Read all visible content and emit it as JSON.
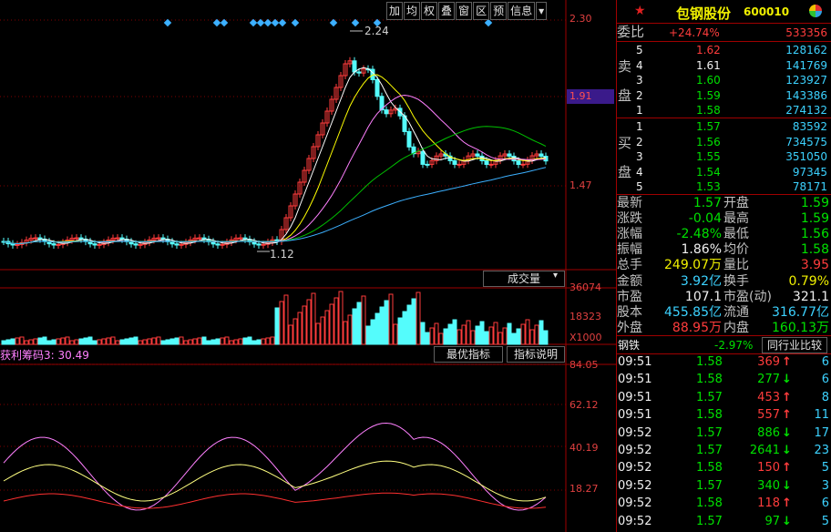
{
  "toolbar": [
    "加",
    "均",
    "权",
    "叠",
    "窗",
    "区",
    "预",
    "信息"
  ],
  "price_axis": {
    "top": "2.30",
    "mid": "1.91",
    "low": "1.47"
  },
  "annotations": {
    "high": "2.24",
    "low": "1.12"
  },
  "volume": {
    "btn": "成交量",
    "v1": "36074",
    "v2": "18323",
    "unit": "X1000"
  },
  "indicator": {
    "title": "获利筹码3: 30.49",
    "btn1": "最优指标",
    "btn2": "指标说明",
    "ticks": [
      "84.05",
      "62.12",
      "40.19",
      "18.27"
    ]
  },
  "stock": {
    "name": "包钢股份",
    "code": "600010"
  },
  "weibi": {
    "label": "委比",
    "pct": "+24.74%",
    "diff": "533356"
  },
  "sell_label": [
    "卖",
    "盘"
  ],
  "buy_label": [
    "买",
    "盘"
  ],
  "sell": [
    {
      "lvl": "5",
      "price": "1.62",
      "vol": "128162"
    },
    {
      "lvl": "4",
      "price": "1.61",
      "vol": "141769"
    },
    {
      "lvl": "3",
      "price": "1.60",
      "vol": "123927"
    },
    {
      "lvl": "2",
      "price": "1.59",
      "vol": "143386"
    },
    {
      "lvl": "1",
      "price": "1.58",
      "vol": "274132"
    }
  ],
  "buy": [
    {
      "lvl": "1",
      "price": "1.57",
      "vol": "83592"
    },
    {
      "lvl": "2",
      "price": "1.56",
      "vol": "734575"
    },
    {
      "lvl": "3",
      "price": "1.55",
      "vol": "351050"
    },
    {
      "lvl": "4",
      "price": "1.54",
      "vol": "97345"
    },
    {
      "lvl": "5",
      "price": "1.53",
      "vol": "78171"
    }
  ],
  "stats": [
    {
      "l1": "最新",
      "v1": "1.57",
      "c1": "green",
      "l2": "开盘",
      "v2": "1.59",
      "c2": "green"
    },
    {
      "l1": "涨跌",
      "v1": "-0.04",
      "c1": "green",
      "l2": "最高",
      "v2": "1.59",
      "c2": "green"
    },
    {
      "l1": "涨幅",
      "v1": "-2.48%",
      "c1": "green",
      "l2": "最低",
      "v2": "1.56",
      "c2": "green"
    },
    {
      "l1": "振幅",
      "v1": "1.86%",
      "c1": "white",
      "l2": "均价",
      "v2": "1.58",
      "c2": "green"
    },
    {
      "l1": "总手",
      "v1": "249.07万",
      "c1": "yellow",
      "l2": "量比",
      "v2": "3.95",
      "c2": "red"
    },
    {
      "l1": "金额",
      "v1": "3.92亿",
      "c1": "cyan",
      "l2": "换手",
      "v2": "0.79%",
      "c2": "yellow"
    },
    {
      "l1": "市盈",
      "v1": "107.1",
      "c1": "white",
      "l2": "市盈(动)",
      "v2": "321.1",
      "c2": "white"
    },
    {
      "l1": "股本",
      "v1": "455.85亿",
      "c1": "cyan",
      "l2": "流通",
      "v2": "316.77亿",
      "c2": "cyan"
    },
    {
      "l1": "外盘",
      "v1": "88.95万",
      "c1": "red",
      "l2": "内盘",
      "v2": "160.13万",
      "c2": "green"
    }
  ],
  "industry": {
    "name": "钢铁",
    "pct": "-2.97%",
    "btn": "同行业比较"
  },
  "ticks": [
    {
      "t": "09:51",
      "p": "1.58",
      "v": "369",
      "d": "up",
      "n": "6"
    },
    {
      "t": "09:51",
      "p": "1.58",
      "v": "277",
      "d": "down",
      "n": "6"
    },
    {
      "t": "09:51",
      "p": "1.57",
      "v": "453",
      "d": "up",
      "n": "8"
    },
    {
      "t": "09:51",
      "p": "1.58",
      "v": "557",
      "d": "up",
      "n": "11"
    },
    {
      "t": "09:52",
      "p": "1.57",
      "v": "886",
      "d": "down",
      "n": "17"
    },
    {
      "t": "09:52",
      "p": "1.57",
      "v": "2641",
      "d": "down",
      "n": "23"
    },
    {
      "t": "09:52",
      "p": "1.58",
      "v": "150",
      "d": "up",
      "n": "5"
    },
    {
      "t": "09:52",
      "p": "1.57",
      "v": "340",
      "d": "down",
      "n": "3"
    },
    {
      "t": "09:52",
      "p": "1.58",
      "v": "118",
      "d": "up",
      "n": "6"
    },
    {
      "t": "09:52",
      "p": "1.57",
      "v": "97",
      "d": "down",
      "n": "5"
    }
  ]
}
